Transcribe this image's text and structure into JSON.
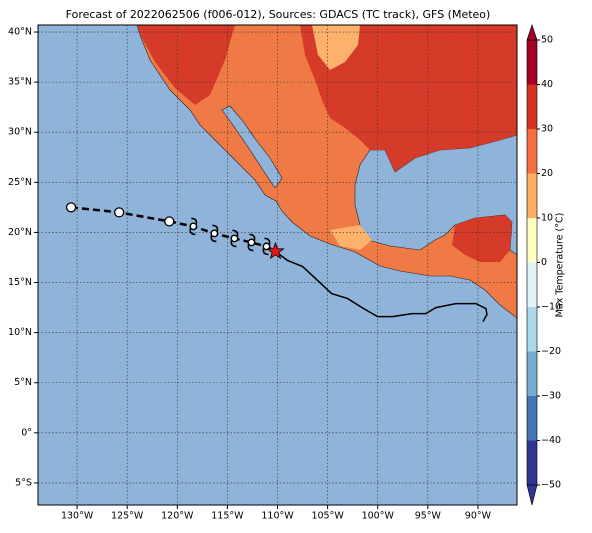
{
  "chart_data": {
    "type": "map",
    "title": "Forecast of 2022062506 (f006-012), Sources: GDACS (TC track), GFS (Meteo)",
    "xlim": [
      -133.9,
      -86.1
    ],
    "ylim": [
      -7.2,
      40.7
    ],
    "xticks": [
      {
        "value": -130,
        "label": "130°W"
      },
      {
        "value": -125,
        "label": "125°W"
      },
      {
        "value": -120,
        "label": "120°W"
      },
      {
        "value": -115,
        "label": "115°W"
      },
      {
        "value": -110,
        "label": "110°W"
      },
      {
        "value": -105,
        "label": "105°W"
      },
      {
        "value": -100,
        "label": "100°W"
      },
      {
        "value": -95,
        "label": "95°W"
      },
      {
        "value": -90,
        "label": "90°W"
      }
    ],
    "yticks": [
      {
        "value": -5,
        "label": "5°S"
      },
      {
        "value": 0,
        "label": "0°"
      },
      {
        "value": 5,
        "label": "5°N"
      },
      {
        "value": 10,
        "label": "10°N"
      },
      {
        "value": 15,
        "label": "15°N"
      },
      {
        "value": 20,
        "label": "20°N"
      },
      {
        "value": 25,
        "label": "25°N"
      },
      {
        "value": 30,
        "label": "30°N"
      },
      {
        "value": 35,
        "label": "35°N"
      },
      {
        "value": 40,
        "label": "40°N"
      }
    ],
    "grid": true,
    "forecast_track": {
      "lon": [
        -130.6,
        -125.8,
        -120.8,
        -118.4,
        -116.3,
        -114.3,
        -112.6,
        -111.1,
        -110.2
      ],
      "lat": [
        22.5,
        22.0,
        21.1,
        20.6,
        19.9,
        19.4,
        19.0,
        18.6,
        18.1
      ],
      "markers": [
        "circle",
        "circle",
        "circle",
        "hurricane",
        "hurricane",
        "hurricane",
        "hurricane",
        "hurricane",
        "star"
      ]
    },
    "past_track": {
      "lon": [
        -110.2,
        -109.0,
        -107.5,
        -106.2,
        -104.6,
        -103.0,
        -101.4,
        -100.0,
        -98.5,
        -96.6,
        -95.2,
        -94.2,
        -92.2,
        -90.2,
        -89.2,
        -89.1,
        -89.5
      ],
      "lat": [
        18.1,
        17.2,
        16.6,
        15.4,
        13.9,
        13.4,
        12.4,
        11.6,
        11.6,
        11.9,
        11.9,
        12.5,
        12.9,
        12.9,
        12.4,
        11.8,
        11.1
      ]
    },
    "colorbar": {
      "label": "Max Temperature (°C)",
      "ticks": [
        {
          "value": -50,
          "label": "−50"
        },
        {
          "value": -40,
          "label": "−40"
        },
        {
          "value": -30,
          "label": "−30"
        },
        {
          "value": -20,
          "label": "−20"
        },
        {
          "value": -10,
          "label": "−10"
        },
        0,
        10,
        20,
        30,
        40,
        50
      ],
      "colors": [
        "#313695",
        "#4575b4",
        "#74add1",
        "#abd9e9",
        "#e0f3f8",
        "#ffffbf",
        "#fdae61",
        "#f46d43",
        "#d73027",
        "#a50026"
      ]
    }
  }
}
